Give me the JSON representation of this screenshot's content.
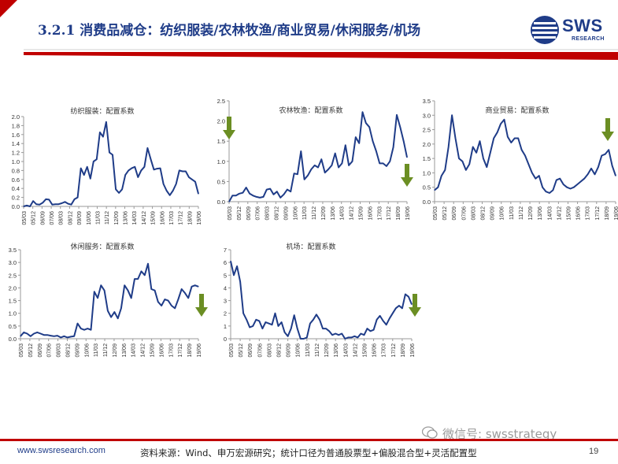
{
  "header": {
    "title": "3.2.1 消费品减仓：纺织服装/农林牧渔/商业贸易/休闲服务/机场",
    "logo_text": "SWS",
    "logo_subtext": "RESEARCH"
  },
  "footer": {
    "url": "www.swsresearch.com",
    "source": "资料来源：Wind、申万宏源研究；统计口径为普通股票型+偏股混合型+灵活配置型",
    "page_number": "19",
    "watermark": "微信号: swsstrategy"
  },
  "colors": {
    "line": "#1f3c88",
    "arrow": "#6b8e23",
    "header_red": "#c00000",
    "axis": "#9a9a9a"
  },
  "chart_data": [
    {
      "type": "line",
      "title": "纺织服装：配置系数",
      "x_tick_labels": [
        "05/03",
        "05/12",
        "06/09",
        "07/06",
        "08/03",
        "08/12",
        "09/09",
        "10/06",
        "11/03",
        "11/12",
        "12/09",
        "13/06",
        "14/03",
        "14/12",
        "15/09",
        "16/06",
        "17/03",
        "17/12",
        "18/09",
        "19/06"
      ],
      "y_ticks": [
        0.0,
        0.2,
        0.4,
        0.6,
        0.8,
        1.0,
        1.2,
        1.4,
        1.6,
        1.8,
        2.0
      ],
      "ylim": [
        0,
        2.0
      ],
      "arrow": "none",
      "values": [
        0.0,
        0.02,
        0.0,
        0.12,
        0.05,
        0.04,
        0.08,
        0.16,
        0.15,
        0.04,
        0.05,
        0.05,
        0.07,
        0.1,
        0.06,
        0.04,
        0.16,
        0.2,
        0.85,
        0.7,
        0.88,
        0.62,
        1.0,
        1.05,
        1.65,
        1.55,
        1.88,
        1.2,
        1.15,
        0.38,
        0.3,
        0.38,
        0.7,
        0.8,
        0.85,
        0.88,
        0.65,
        0.8,
        0.88,
        1.3,
        1.05,
        0.82,
        0.84,
        0.85,
        0.5,
        0.35,
        0.25,
        0.35,
        0.5,
        0.8,
        0.78,
        0.78,
        0.65,
        0.6,
        0.55,
        0.28
      ]
    },
    {
      "type": "line",
      "title": "农林牧渔：配置系数",
      "x_tick_labels": [
        "05/03",
        "05/12",
        "06/09",
        "07/06",
        "08/03",
        "08/12",
        "09/09",
        "10/06",
        "11/03",
        "11/12",
        "12/09",
        "13/06",
        "14/03",
        "14/12",
        "15/09",
        "16/06",
        "17/03",
        "17/12",
        "18/09",
        "19/06"
      ],
      "y_ticks": [
        0.0,
        0.5,
        1.0,
        1.5,
        2.0,
        2.5
      ],
      "ylim": [
        0,
        2.5
      ],
      "arrow": "both",
      "values": [
        0.0,
        0.15,
        0.15,
        0.2,
        0.22,
        0.35,
        0.2,
        0.15,
        0.12,
        0.1,
        0.12,
        0.3,
        0.32,
        0.18,
        0.25,
        0.1,
        0.18,
        0.3,
        0.25,
        0.7,
        0.68,
        1.25,
        0.55,
        0.65,
        0.8,
        0.9,
        0.85,
        1.05,
        0.72,
        0.8,
        0.9,
        1.2,
        0.85,
        0.95,
        1.4,
        0.9,
        1.0,
        1.6,
        1.45,
        2.22,
        1.95,
        1.85,
        1.5,
        1.25,
        0.95,
        0.95,
        0.88,
        1.0,
        1.35,
        2.15,
        1.85,
        1.5,
        1.1
      ]
    },
    {
      "type": "line",
      "title": "商业贸易：配置系数",
      "x_tick_labels": [
        "05/03",
        "05/12",
        "06/09",
        "07/06",
        "08/03",
        "08/12",
        "09/09",
        "10/06",
        "11/03",
        "11/12",
        "12/09",
        "13/06",
        "14/03",
        "14/12",
        "15/09",
        "16/06",
        "17/03",
        "17/12",
        "18/09",
        "19/06"
      ],
      "y_ticks": [
        0.0,
        0.5,
        1.0,
        1.5,
        2.0,
        2.5,
        3.0,
        3.5
      ],
      "ylim": [
        0,
        3.5
      ],
      "arrow": "down-right",
      "values": [
        0.4,
        0.5,
        0.9,
        1.1,
        1.9,
        3.0,
        2.2,
        1.5,
        1.4,
        1.1,
        1.3,
        1.9,
        1.7,
        2.1,
        1.5,
        1.2,
        1.7,
        2.2,
        2.4,
        2.7,
        2.85,
        2.25,
        2.05,
        2.2,
        2.2,
        1.8,
        1.6,
        1.3,
        1.0,
        0.8,
        0.9,
        0.5,
        0.35,
        0.3,
        0.4,
        0.75,
        0.8,
        0.6,
        0.5,
        0.45,
        0.5,
        0.6,
        0.7,
        0.8,
        0.95,
        1.15,
        0.95,
        1.2,
        1.6,
        1.65,
        1.8,
        1.25,
        0.9
      ]
    },
    {
      "type": "line",
      "title": "休闲服务：配置系数",
      "x_tick_labels": [
        "05/03",
        "05/12",
        "06/09",
        "07/06",
        "08/03",
        "08/12",
        "09/09",
        "10/06",
        "11/03",
        "11/12",
        "12/09",
        "13/06",
        "14/03",
        "14/12",
        "15/09",
        "16/06",
        "17/03",
        "17/12",
        "18/09",
        "19/06"
      ],
      "y_ticks": [
        0.0,
        0.5,
        1.0,
        1.5,
        2.0,
        2.5,
        3.0,
        3.5
      ],
      "ylim": [
        0,
        3.5
      ],
      "arrow": "down-right",
      "values": [
        0.1,
        0.25,
        0.2,
        0.1,
        0.2,
        0.25,
        0.2,
        0.15,
        0.15,
        0.12,
        0.1,
        0.12,
        0.05,
        0.1,
        0.05,
        0.08,
        0.1,
        0.6,
        0.4,
        0.35,
        0.4,
        0.35,
        1.85,
        1.6,
        2.1,
        1.9,
        1.1,
        0.85,
        1.05,
        0.8,
        1.2,
        2.1,
        1.9,
        1.6,
        2.35,
        2.35,
        2.65,
        2.5,
        2.95,
        1.95,
        1.9,
        1.45,
        1.3,
        1.55,
        1.5,
        1.3,
        1.2,
        1.55,
        1.95,
        1.8,
        1.6,
        2.05,
        2.1,
        2.05
      ]
    },
    {
      "type": "line",
      "title": "机场：配置系数",
      "x_tick_labels": [
        "05/03",
        "05/12",
        "06/09",
        "07/06",
        "08/03",
        "08/12",
        "09/09",
        "10/06",
        "11/03",
        "11/12",
        "12/09",
        "13/06",
        "14/03",
        "14/12",
        "15/09",
        "16/06",
        "17/03",
        "17/12",
        "18/09",
        "19/06"
      ],
      "y_ticks": [
        0,
        1,
        2,
        3,
        4,
        5,
        6,
        7
      ],
      "ylim": [
        0,
        7
      ],
      "arrow": "down-right",
      "values": [
        6.1,
        5.0,
        5.7,
        4.5,
        2.0,
        1.5,
        0.9,
        1.0,
        1.5,
        1.4,
        0.8,
        1.3,
        1.2,
        1.1,
        2.0,
        1.0,
        1.3,
        0.5,
        0.2,
        0.8,
        1.85,
        0.8,
        0.0,
        0.0,
        0.1,
        1.2,
        1.5,
        1.9,
        1.5,
        0.8,
        0.8,
        0.6,
        0.3,
        0.4,
        0.3,
        0.4,
        0.0,
        0.1,
        0.1,
        0.2,
        0.1,
        0.4,
        0.3,
        0.8,
        0.6,
        0.7,
        1.5,
        1.8,
        1.4,
        1.1,
        1.6,
        2.0,
        2.4,
        2.6,
        2.4,
        3.5,
        3.3,
        2.7
      ]
    }
  ]
}
